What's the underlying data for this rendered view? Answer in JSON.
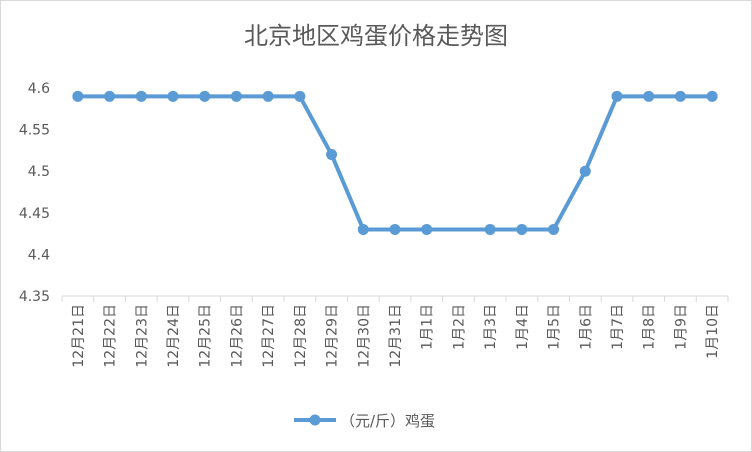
{
  "chart_data": {
    "type": "line",
    "title": "北京地区鸡蛋价格走势图",
    "categories": [
      "12月21日",
      "12月22日",
      "12月23日",
      "12月24日",
      "12月25日",
      "12月26日",
      "12月27日",
      "12月28日",
      "12月29日",
      "12月30日",
      "12月31日",
      "1月1日",
      "1月2日",
      "1月3日",
      "1月4日",
      "1月5日",
      "1月6日",
      "1月7日",
      "1月8日",
      "1月9日",
      "1月10日"
    ],
    "series": [
      {
        "name": "（元/斤）鸡蛋",
        "values": [
          4.59,
          4.59,
          4.59,
          4.59,
          4.59,
          4.59,
          4.59,
          4.59,
          4.52,
          4.43,
          4.43,
          4.43,
          null,
          4.43,
          4.43,
          4.43,
          4.5,
          4.59,
          4.59,
          4.59,
          4.59
        ],
        "color": "#5b9bd5"
      }
    ],
    "yticks": [
      "4.35",
      "4.4",
      "4.45",
      "4.5",
      "4.55",
      "4.6"
    ],
    "ylim": [
      4.35,
      4.6
    ],
    "grid": false,
    "legend": "bottom"
  }
}
